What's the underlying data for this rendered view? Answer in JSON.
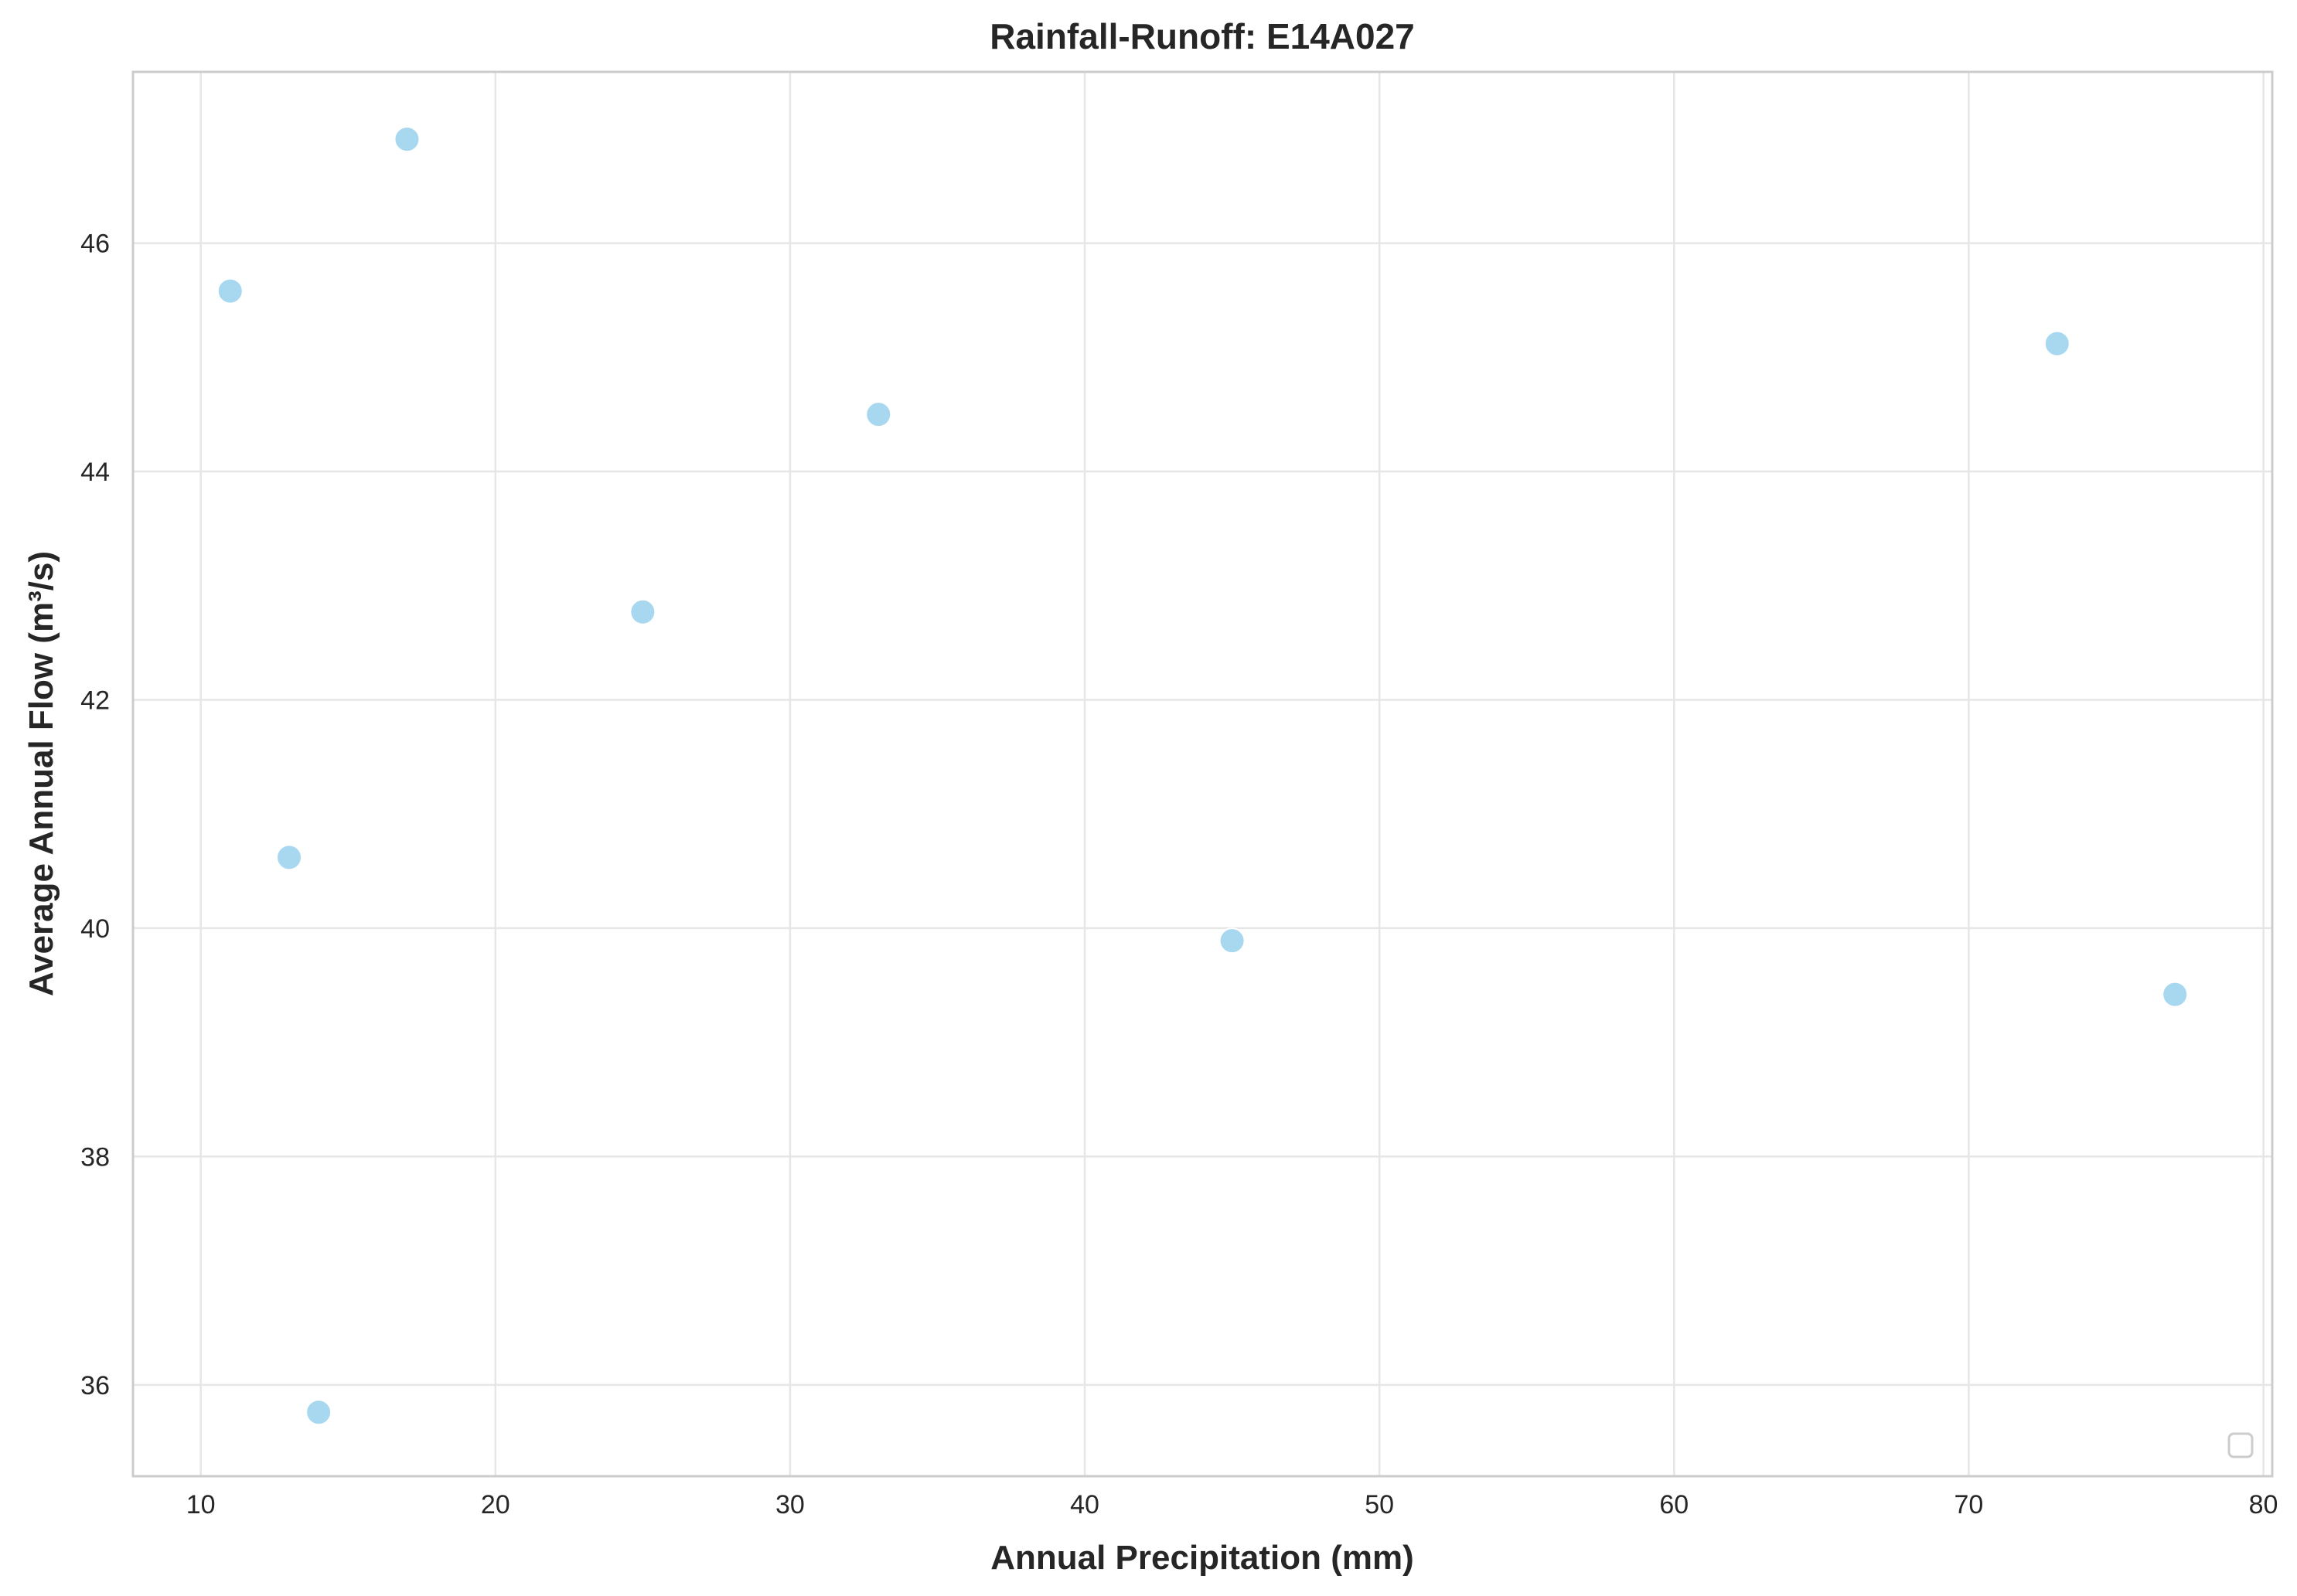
{
  "chart_data": {
    "type": "scatter",
    "title": "Rainfall-Runoff: E14A027",
    "xlabel": "Annual Precipitation (mm)",
    "ylabel": "Average Annual Flow (m³/s)",
    "xlim": [
      7.7,
      80.3
    ],
    "ylim": [
      35.2,
      47.5
    ],
    "xticks": [
      10,
      20,
      30,
      40,
      50,
      60,
      70,
      80
    ],
    "yticks": [
      36,
      38,
      40,
      42,
      44,
      46
    ],
    "grid": true,
    "legend": "bottom-right (empty)",
    "marker_color": "#a8d8f0",
    "points": [
      {
        "x": 11,
        "y": 45.58
      },
      {
        "x": 13,
        "y": 40.62
      },
      {
        "x": 14,
        "y": 35.76
      },
      {
        "x": 17,
        "y": 46.91
      },
      {
        "x": 25,
        "y": 42.77
      },
      {
        "x": 33,
        "y": 44.5
      },
      {
        "x": 45,
        "y": 39.89
      },
      {
        "x": 73,
        "y": 45.12
      },
      {
        "x": 77,
        "y": 39.42
      }
    ]
  }
}
